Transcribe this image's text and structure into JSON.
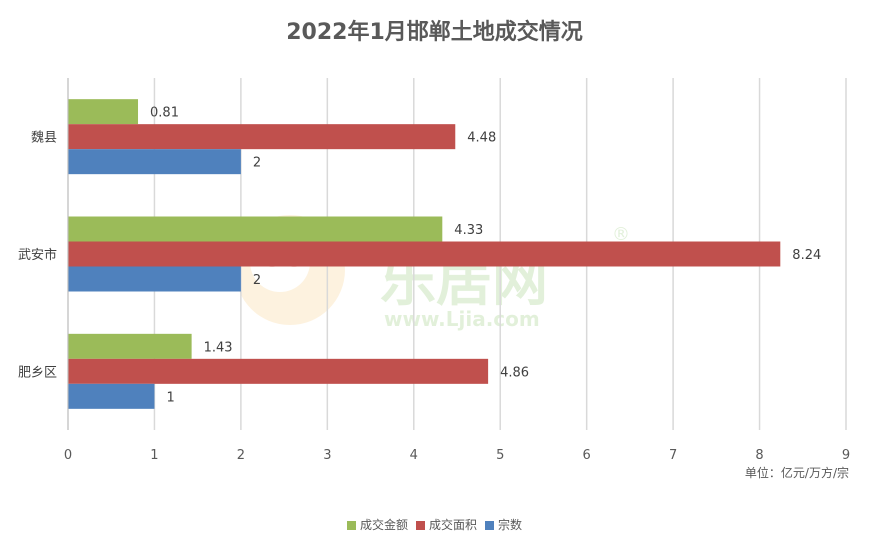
{
  "chart_data": {
    "type": "bar",
    "orientation": "horizontal",
    "title": "2022年1月邯郸土地成交情况",
    "unit_note": "单位：亿元/万方/宗",
    "categories": [
      "魏县",
      "武安市",
      "肥乡区"
    ],
    "series": [
      {
        "name": "成交金额",
        "color": "#9bbb59",
        "values": [
          0.81,
          4.33,
          1.43
        ]
      },
      {
        "name": "成交面积",
        "color": "#c0504d",
        "values": [
          4.48,
          8.24,
          4.86
        ]
      },
      {
        "name": "宗数",
        "color": "#4f81bd",
        "values": [
          2,
          2,
          1
        ]
      }
    ],
    "x_ticks": [
      "0",
      "1",
      "2",
      "3",
      "4",
      "5",
      "6",
      "7",
      "8",
      "9"
    ],
    "xlim": [
      0,
      9
    ],
    "grid": true,
    "legend_position": "bottom",
    "watermark": {
      "text": "乐居网",
      "url": "www.Ljia.com",
      "mark": "®"
    }
  }
}
